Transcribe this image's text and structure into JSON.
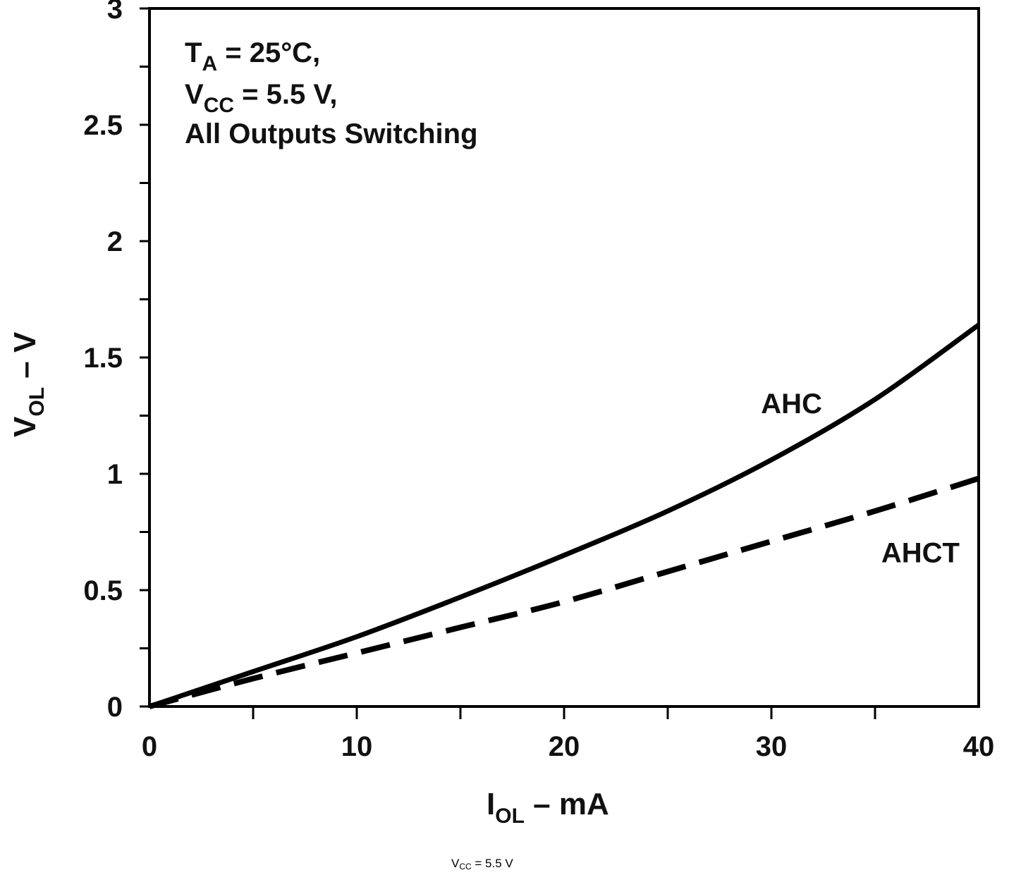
{
  "chart_data": {
    "type": "line",
    "xlim": [
      0,
      40
    ],
    "ylim": [
      0,
      3
    ],
    "x_ticks": [
      "0",
      "10",
      "20",
      "30",
      "40"
    ],
    "y_ticks": [
      "0",
      "0.5",
      "1",
      "1.5",
      "2",
      "2.5",
      "3"
    ],
    "x_minor_step": 5,
    "y_minor_step": 0.25,
    "xlabel": {
      "main": "I",
      "sub": "OL",
      "rest": " – mA"
    },
    "ylabel": {
      "main": "V",
      "sub": "OL",
      "rest": " – V"
    },
    "conditions": [
      {
        "main": "T",
        "sub": "A",
        "rest": " = 25°C,"
      },
      {
        "main": "V",
        "sub": "CC",
        "rest": " = 5.5 V,"
      },
      {
        "main": "All Outputs Switching",
        "sub": "",
        "rest": ""
      }
    ],
    "series": [
      {
        "name": "AHC",
        "style": "solid",
        "color": "#000000",
        "x": [
          0,
          5,
          10,
          15,
          20,
          25,
          30,
          35,
          40
        ],
        "y": [
          0,
          0.15,
          0.3,
          0.47,
          0.65,
          0.84,
          1.06,
          1.32,
          1.64
        ]
      },
      {
        "name": "AHCT",
        "style": "dashed",
        "color": "#000000",
        "x": [
          0,
          5,
          10,
          15,
          20,
          25,
          30,
          35,
          40
        ],
        "y": [
          0,
          0.12,
          0.23,
          0.34,
          0.45,
          0.58,
          0.71,
          0.84,
          0.98
        ]
      }
    ],
    "series_labels": [
      {
        "text": "AHC",
        "x": 29.5,
        "y": 1.26
      },
      {
        "text": "AHCT",
        "x": 35.3,
        "y": 0.62
      }
    ]
  },
  "caption": {
    "main": "V",
    "sub": "CC",
    "rest": " = 5.5 V"
  }
}
